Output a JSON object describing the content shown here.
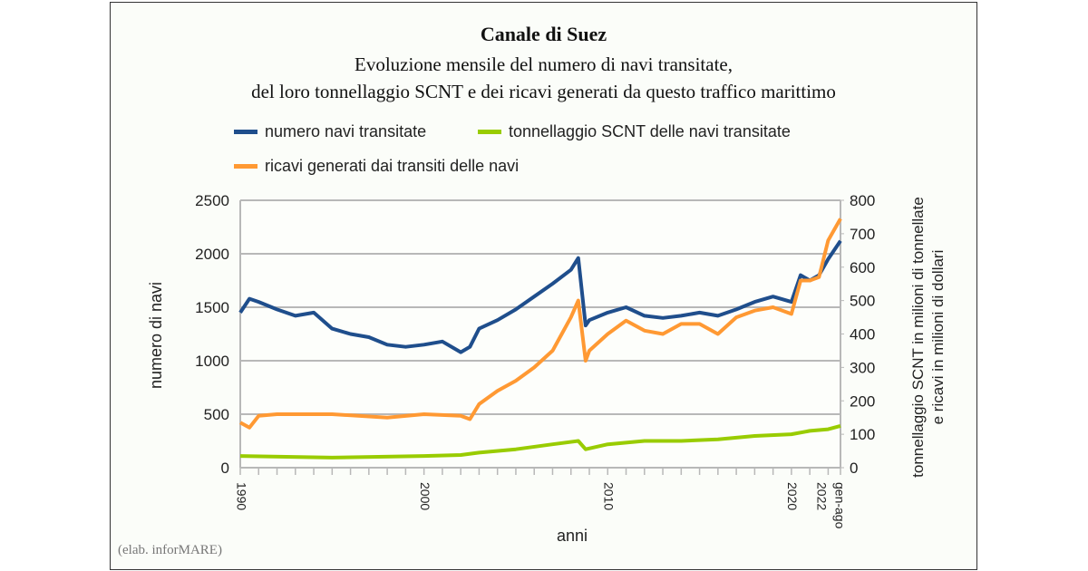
{
  "chart_data": {
    "type": "line",
    "title": "Canale di Suez",
    "subtitle": [
      "Evoluzione mensile del numero di navi transitate,",
      "del loro tonnellaggio SCNT e dei ricavi generati da questo traffico marittimo"
    ],
    "xlabel": "anni",
    "ylabel": "numero di navi",
    "y2label": [
      "tonnellaggio SCNT in milioni di tonnellate",
      "e ricavi in milioni di dollari"
    ],
    "xlim": [
      1990,
      2022.67
    ],
    "ylim": [
      0,
      2500
    ],
    "y2lim": [
      0,
      800
    ],
    "yticks": [
      0,
      500,
      1000,
      1500,
      2000,
      2500
    ],
    "y2ticks": [
      0,
      100,
      200,
      300,
      400,
      500,
      600,
      700,
      800
    ],
    "xticklabels": [
      {
        "x": 1990,
        "label": "1990"
      },
      {
        "x": 2000,
        "label": "2000"
      },
      {
        "x": 2010,
        "label": "2010"
      },
      {
        "x": 2020,
        "label": "2020"
      },
      {
        "x": 2022,
        "label": "2022"
      },
      {
        "x": 2022.67,
        "label": "gen-ago"
      }
    ],
    "grid": true,
    "legend_position": "top",
    "series": [
      {
        "name": "numero navi transitate",
        "axis": "left",
        "color": "#1f4e8c",
        "points": [
          [
            1990,
            1450
          ],
          [
            1990.5,
            1580
          ],
          [
            1991,
            1550
          ],
          [
            1992,
            1480
          ],
          [
            1993,
            1420
          ],
          [
            1994,
            1450
          ],
          [
            1995,
            1300
          ],
          [
            1996,
            1250
          ],
          [
            1997,
            1220
          ],
          [
            1998,
            1150
          ],
          [
            1999,
            1130
          ],
          [
            2000,
            1150
          ],
          [
            2001,
            1180
          ],
          [
            2002,
            1080
          ],
          [
            2002.5,
            1130
          ],
          [
            2003,
            1300
          ],
          [
            2004,
            1380
          ],
          [
            2005,
            1480
          ],
          [
            2006,
            1600
          ],
          [
            2007,
            1720
          ],
          [
            2008,
            1850
          ],
          [
            2008.4,
            1960
          ],
          [
            2008.8,
            1330
          ],
          [
            2009,
            1380
          ],
          [
            2010,
            1450
          ],
          [
            2011,
            1500
          ],
          [
            2012,
            1420
          ],
          [
            2013,
            1400
          ],
          [
            2014,
            1420
          ],
          [
            2015,
            1450
          ],
          [
            2016,
            1420
          ],
          [
            2017,
            1480
          ],
          [
            2018,
            1550
          ],
          [
            2019,
            1600
          ],
          [
            2020,
            1550
          ],
          [
            2020.5,
            1800
          ],
          [
            2021,
            1750
          ],
          [
            2021.5,
            1800
          ],
          [
            2022,
            1950
          ],
          [
            2022.67,
            2120
          ]
        ]
      },
      {
        "name": "tonnellaggio SCNT delle navi transitate",
        "axis": "right",
        "color": "#99cc00",
        "points": [
          [
            1990,
            35
          ],
          [
            1995,
            30
          ],
          [
            2000,
            35
          ],
          [
            2002,
            38
          ],
          [
            2003,
            45
          ],
          [
            2005,
            55
          ],
          [
            2007,
            70
          ],
          [
            2008.4,
            80
          ],
          [
            2008.8,
            55
          ],
          [
            2010,
            70
          ],
          [
            2012,
            80
          ],
          [
            2014,
            80
          ],
          [
            2016,
            85
          ],
          [
            2018,
            95
          ],
          [
            2020,
            100
          ],
          [
            2021,
            110
          ],
          [
            2022,
            115
          ],
          [
            2022.67,
            125
          ]
        ]
      },
      {
        "name": "ricavi generati dai transiti delle navi",
        "axis": "right",
        "color": "#ff9933",
        "points": [
          [
            1990,
            135
          ],
          [
            1990.5,
            120
          ],
          [
            1991,
            155
          ],
          [
            1992,
            160
          ],
          [
            1995,
            160
          ],
          [
            1998,
            150
          ],
          [
            2000,
            160
          ],
          [
            2002,
            155
          ],
          [
            2002.5,
            145
          ],
          [
            2003,
            190
          ],
          [
            2004,
            230
          ],
          [
            2005,
            260
          ],
          [
            2006,
            300
          ],
          [
            2007,
            350
          ],
          [
            2007.5,
            400
          ],
          [
            2008,
            450
          ],
          [
            2008.4,
            500
          ],
          [
            2008.8,
            320
          ],
          [
            2009,
            350
          ],
          [
            2010,
            400
          ],
          [
            2011,
            440
          ],
          [
            2012,
            410
          ],
          [
            2013,
            400
          ],
          [
            2014,
            430
          ],
          [
            2015,
            430
          ],
          [
            2016,
            400
          ],
          [
            2017,
            450
          ],
          [
            2018,
            470
          ],
          [
            2019,
            480
          ],
          [
            2020,
            460
          ],
          [
            2020.5,
            560
          ],
          [
            2021,
            560
          ],
          [
            2021.5,
            570
          ],
          [
            2022,
            680
          ],
          [
            2022.67,
            745
          ]
        ]
      }
    ]
  },
  "credit": "(elab. inforMARE)"
}
